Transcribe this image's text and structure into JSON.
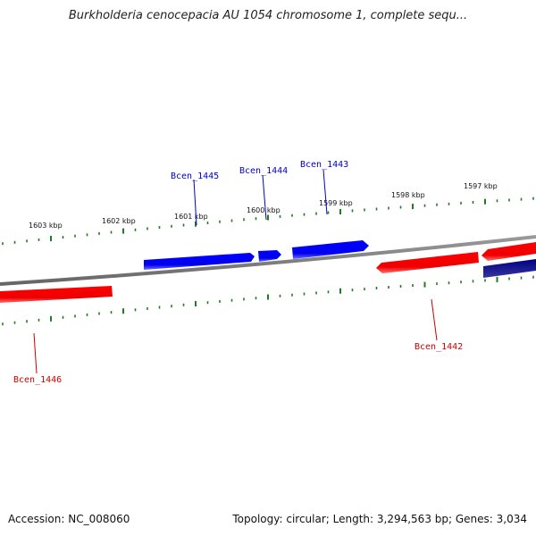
{
  "title": "Burkholderia cenocepacia AU 1054 chromosome 1, complete sequ...",
  "footer": {
    "accession": "Accession: NC_008060",
    "summary": "Topology: circular; Length: 3,294,563 bp; Genes: 3,034"
  },
  "colors": {
    "backbone": "#888888",
    "tick": "#1e7d1e",
    "forward_gene": "#0000ff",
    "reverse_gene": "#ff0000",
    "reverse_gene_dark": "#000080",
    "forward_label": "#0000cc",
    "reverse_label": "#cc0000"
  },
  "kbp_labels": [
    "1603 kbp",
    "1602 kbp",
    "1601 kbp",
    "1600 kbp",
    "1599 kbp",
    "1598 kbp",
    "1597 kbp"
  ],
  "genes": [
    {
      "id": "Bcen_1445",
      "strand": "forward"
    },
    {
      "id": "Bcen_1444",
      "strand": "forward"
    },
    {
      "id": "Bcen_1443",
      "strand": "forward"
    },
    {
      "id": "Bcen_1442",
      "strand": "reverse"
    },
    {
      "id": "Bcen_1446",
      "strand": "reverse"
    }
  ]
}
